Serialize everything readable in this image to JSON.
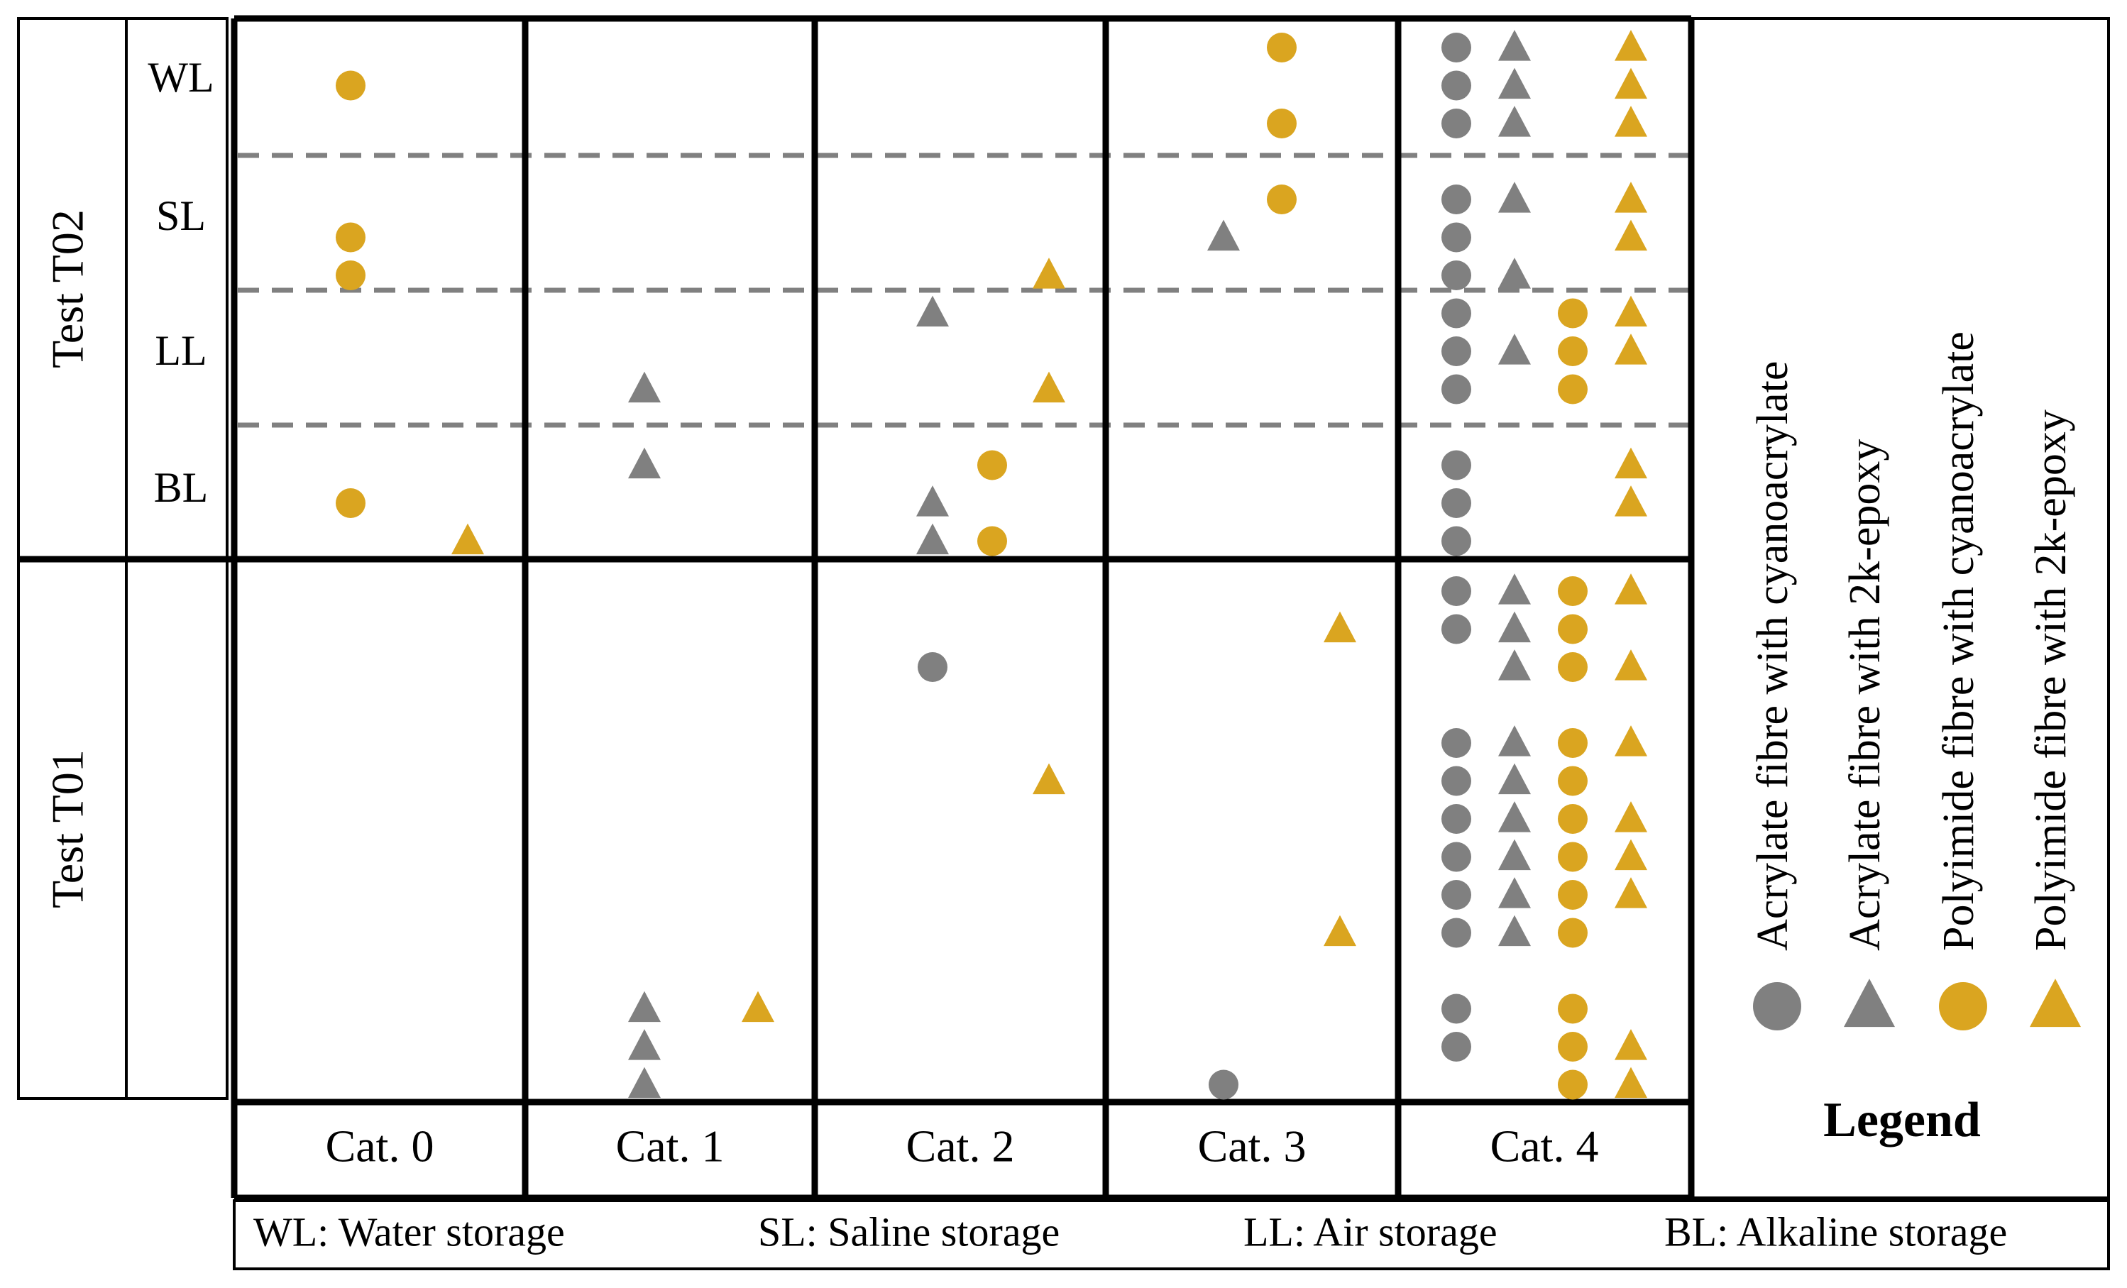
{
  "chart_data": {
    "type": "scatter",
    "legend": {
      "title": "Legend",
      "placement": "right",
      "entries": [
        {
          "id": "acr_cy",
          "label": "Acrylate fibre with cyanoacrylate",
          "shape": "circle",
          "color": "#808080"
        },
        {
          "id": "acr_ep",
          "label": "Acrylate fibre with 2k-epoxy",
          "shape": "triangle",
          "color": "#808080"
        },
        {
          "id": "poly_cy",
          "label": "Polyimide fibre with cyanoacrylate",
          "shape": "circle",
          "color": "#DAA520"
        },
        {
          "id": "poly_ep",
          "label": "Polyimide fibre with 2k-epoxy",
          "shape": "triangle",
          "color": "#DAA520"
        }
      ]
    },
    "categories": [
      "Cat. 0",
      "Cat. 1",
      "Cat. 2",
      "Cat. 3",
      "Cat. 4"
    ],
    "tests": [
      {
        "label": "Test T02",
        "storages": [
          "WL",
          "SL",
          "LL",
          "BL"
        ]
      },
      {
        "label": "Test T01",
        "storages": []
      }
    ],
    "footnote": [
      "WL: Water storage",
      "SL: Saline storage",
      "LL: Air storage",
      "BL: Alkaline storage"
    ],
    "marker_colors": {
      "gray": "#808080",
      "gold": "#DAA520"
    },
    "points": [
      {
        "test": "T02",
        "category": 0,
        "col": 2,
        "row": 1,
        "series": "poly_cy"
      },
      {
        "test": "T02",
        "category": 0,
        "col": 2,
        "row": 5,
        "series": "poly_cy"
      },
      {
        "test": "T02",
        "category": 0,
        "col": 2,
        "row": 6,
        "series": "poly_cy"
      },
      {
        "test": "T02",
        "category": 0,
        "col": 2,
        "row": 12,
        "series": "poly_cy"
      },
      {
        "test": "T02",
        "category": 0,
        "col": 3,
        "row": 13,
        "series": "poly_ep"
      },
      {
        "test": "T02",
        "category": 1,
        "col": 1,
        "row": 9,
        "series": "acr_ep"
      },
      {
        "test": "T02",
        "category": 1,
        "col": 1,
        "row": 11,
        "series": "acr_ep"
      },
      {
        "test": "T02",
        "category": 2,
        "col": 3,
        "row": 6,
        "series": "poly_ep"
      },
      {
        "test": "T02",
        "category": 2,
        "col": 1,
        "row": 7,
        "series": "acr_ep"
      },
      {
        "test": "T02",
        "category": 2,
        "col": 3,
        "row": 9,
        "series": "poly_ep"
      },
      {
        "test": "T02",
        "category": 2,
        "col": 2,
        "row": 11,
        "series": "poly_cy"
      },
      {
        "test": "T02",
        "category": 2,
        "col": 1,
        "row": 12,
        "series": "acr_ep"
      },
      {
        "test": "T02",
        "category": 2,
        "col": 1,
        "row": 13,
        "series": "acr_ep"
      },
      {
        "test": "T02",
        "category": 2,
        "col": 2,
        "row": 13,
        "series": "poly_cy"
      },
      {
        "test": "T02",
        "category": 3,
        "col": 2,
        "row": 0,
        "series": "poly_cy"
      },
      {
        "test": "T02",
        "category": 3,
        "col": 2,
        "row": 2,
        "series": "poly_cy"
      },
      {
        "test": "T02",
        "category": 3,
        "col": 2,
        "row": 4,
        "series": "poly_cy"
      },
      {
        "test": "T02",
        "category": 3,
        "col": 1,
        "row": 5,
        "series": "acr_ep"
      },
      {
        "test": "T02",
        "category": 4,
        "col": 0,
        "row": 0,
        "series": "acr_cy"
      },
      {
        "test": "T02",
        "category": 4,
        "col": 0,
        "row": 1,
        "series": "acr_cy"
      },
      {
        "test": "T02",
        "category": 4,
        "col": 0,
        "row": 2,
        "series": "acr_cy"
      },
      {
        "test": "T02",
        "category": 4,
        "col": 0,
        "row": 4,
        "series": "acr_cy"
      },
      {
        "test": "T02",
        "category": 4,
        "col": 0,
        "row": 5,
        "series": "acr_cy"
      },
      {
        "test": "T02",
        "category": 4,
        "col": 0,
        "row": 6,
        "series": "acr_cy"
      },
      {
        "test": "T02",
        "category": 4,
        "col": 0,
        "row": 7,
        "series": "acr_cy"
      },
      {
        "test": "T02",
        "category": 4,
        "col": 0,
        "row": 8,
        "series": "acr_cy"
      },
      {
        "test": "T02",
        "category": 4,
        "col": 0,
        "row": 9,
        "series": "acr_cy"
      },
      {
        "test": "T02",
        "category": 4,
        "col": 0,
        "row": 11,
        "series": "acr_cy"
      },
      {
        "test": "T02",
        "category": 4,
        "col": 0,
        "row": 12,
        "series": "acr_cy"
      },
      {
        "test": "T02",
        "category": 4,
        "col": 0,
        "row": 13,
        "series": "acr_cy"
      },
      {
        "test": "T02",
        "category": 4,
        "col": 1,
        "row": 0,
        "series": "acr_ep"
      },
      {
        "test": "T02",
        "category": 4,
        "col": 1,
        "row": 1,
        "series": "acr_ep"
      },
      {
        "test": "T02",
        "category": 4,
        "col": 1,
        "row": 2,
        "series": "acr_ep"
      },
      {
        "test": "T02",
        "category": 4,
        "col": 1,
        "row": 4,
        "series": "acr_ep"
      },
      {
        "test": "T02",
        "category": 4,
        "col": 1,
        "row": 6,
        "series": "acr_ep"
      },
      {
        "test": "T02",
        "category": 4,
        "col": 1,
        "row": 8,
        "series": "acr_ep"
      },
      {
        "test": "T02",
        "category": 4,
        "col": 2,
        "row": 7,
        "series": "poly_cy"
      },
      {
        "test": "T02",
        "category": 4,
        "col": 2,
        "row": 8,
        "series": "poly_cy"
      },
      {
        "test": "T02",
        "category": 4,
        "col": 2,
        "row": 9,
        "series": "poly_cy"
      },
      {
        "test": "T02",
        "category": 4,
        "col": 3,
        "row": 0,
        "series": "poly_ep"
      },
      {
        "test": "T02",
        "category": 4,
        "col": 3,
        "row": 1,
        "series": "poly_ep"
      },
      {
        "test": "T02",
        "category": 4,
        "col": 3,
        "row": 2,
        "series": "poly_ep"
      },
      {
        "test": "T02",
        "category": 4,
        "col": 3,
        "row": 4,
        "series": "poly_ep"
      },
      {
        "test": "T02",
        "category": 4,
        "col": 3,
        "row": 5,
        "series": "poly_ep"
      },
      {
        "test": "T02",
        "category": 4,
        "col": 3,
        "row": 7,
        "series": "poly_ep"
      },
      {
        "test": "T02",
        "category": 4,
        "col": 3,
        "row": 8,
        "series": "poly_ep"
      },
      {
        "test": "T02",
        "category": 4,
        "col": 3,
        "row": 11,
        "series": "poly_ep"
      },
      {
        "test": "T02",
        "category": 4,
        "col": 3,
        "row": 12,
        "series": "poly_ep"
      },
      {
        "test": "T01",
        "category": 1,
        "col": 1,
        "row": 11,
        "series": "acr_ep"
      },
      {
        "test": "T01",
        "category": 1,
        "col": 1,
        "row": 12,
        "series": "acr_ep"
      },
      {
        "test": "T01",
        "category": 1,
        "col": 1,
        "row": 13,
        "series": "acr_ep"
      },
      {
        "test": "T01",
        "category": 1,
        "col": 3,
        "row": 11,
        "series": "poly_ep"
      },
      {
        "test": "T01",
        "category": 2,
        "col": 1,
        "row": 2,
        "series": "acr_cy"
      },
      {
        "test": "T01",
        "category": 2,
        "col": 3,
        "row": 5,
        "series": "poly_ep"
      },
      {
        "test": "T01",
        "category": 3,
        "col": 3,
        "row": 1,
        "series": "poly_ep"
      },
      {
        "test": "T01",
        "category": 3,
        "col": 3,
        "row": 9,
        "series": "poly_ep"
      },
      {
        "test": "T01",
        "category": 3,
        "col": 1,
        "row": 13,
        "series": "acr_cy"
      },
      {
        "test": "T01",
        "category": 4,
        "col": 0,
        "row": 0,
        "series": "acr_cy"
      },
      {
        "test": "T01",
        "category": 4,
        "col": 0,
        "row": 1,
        "series": "acr_cy"
      },
      {
        "test": "T01",
        "category": 4,
        "col": 0,
        "row": 4,
        "series": "acr_cy"
      },
      {
        "test": "T01",
        "category": 4,
        "col": 0,
        "row": 5,
        "series": "acr_cy"
      },
      {
        "test": "T01",
        "category": 4,
        "col": 0,
        "row": 6,
        "series": "acr_cy"
      },
      {
        "test": "T01",
        "category": 4,
        "col": 0,
        "row": 7,
        "series": "acr_cy"
      },
      {
        "test": "T01",
        "category": 4,
        "col": 0,
        "row": 8,
        "series": "acr_cy"
      },
      {
        "test": "T01",
        "category": 4,
        "col": 0,
        "row": 9,
        "series": "acr_cy"
      },
      {
        "test": "T01",
        "category": 4,
        "col": 0,
        "row": 11,
        "series": "acr_cy"
      },
      {
        "test": "T01",
        "category": 4,
        "col": 0,
        "row": 12,
        "series": "acr_cy"
      },
      {
        "test": "T01",
        "category": 4,
        "col": 1,
        "row": 0,
        "series": "acr_ep"
      },
      {
        "test": "T01",
        "category": 4,
        "col": 1,
        "row": 1,
        "series": "acr_ep"
      },
      {
        "test": "T01",
        "category": 4,
        "col": 1,
        "row": 2,
        "series": "acr_ep"
      },
      {
        "test": "T01",
        "category": 4,
        "col": 1,
        "row": 4,
        "series": "acr_ep"
      },
      {
        "test": "T01",
        "category": 4,
        "col": 1,
        "row": 5,
        "series": "acr_ep"
      },
      {
        "test": "T01",
        "category": 4,
        "col": 1,
        "row": 6,
        "series": "acr_ep"
      },
      {
        "test": "T01",
        "category": 4,
        "col": 1,
        "row": 7,
        "series": "acr_ep"
      },
      {
        "test": "T01",
        "category": 4,
        "col": 1,
        "row": 8,
        "series": "acr_ep"
      },
      {
        "test": "T01",
        "category": 4,
        "col": 1,
        "row": 9,
        "series": "acr_ep"
      },
      {
        "test": "T01",
        "category": 4,
        "col": 2,
        "row": 0,
        "series": "poly_cy"
      },
      {
        "test": "T01",
        "category": 4,
        "col": 2,
        "row": 1,
        "series": "poly_cy"
      },
      {
        "test": "T01",
        "category": 4,
        "col": 2,
        "row": 2,
        "series": "poly_cy"
      },
      {
        "test": "T01",
        "category": 4,
        "col": 2,
        "row": 4,
        "series": "poly_cy"
      },
      {
        "test": "T01",
        "category": 4,
        "col": 2,
        "row": 5,
        "series": "poly_cy"
      },
      {
        "test": "T01",
        "category": 4,
        "col": 2,
        "row": 6,
        "series": "poly_cy"
      },
      {
        "test": "T01",
        "category": 4,
        "col": 2,
        "row": 7,
        "series": "poly_cy"
      },
      {
        "test": "T01",
        "category": 4,
        "col": 2,
        "row": 8,
        "series": "poly_cy"
      },
      {
        "test": "T01",
        "category": 4,
        "col": 2,
        "row": 9,
        "series": "poly_cy"
      },
      {
        "test": "T01",
        "category": 4,
        "col": 2,
        "row": 11,
        "series": "poly_cy"
      },
      {
        "test": "T01",
        "category": 4,
        "col": 2,
        "row": 12,
        "series": "poly_cy"
      },
      {
        "test": "T01",
        "category": 4,
        "col": 2,
        "row": 13,
        "series": "poly_cy"
      },
      {
        "test": "T01",
        "category": 4,
        "col": 3,
        "row": 0,
        "series": "poly_ep"
      },
      {
        "test": "T01",
        "category": 4,
        "col": 3,
        "row": 2,
        "series": "poly_ep"
      },
      {
        "test": "T01",
        "category": 4,
        "col": 3,
        "row": 4,
        "series": "poly_ep"
      },
      {
        "test": "T01",
        "category": 4,
        "col": 3,
        "row": 6,
        "series": "poly_ep"
      },
      {
        "test": "T01",
        "category": 4,
        "col": 3,
        "row": 7,
        "series": "poly_ep"
      },
      {
        "test": "T01",
        "category": 4,
        "col": 3,
        "row": 8,
        "series": "poly_ep"
      },
      {
        "test": "T01",
        "category": 4,
        "col": 3,
        "row": 12,
        "series": "poly_ep"
      },
      {
        "test": "T01",
        "category": 4,
        "col": 3,
        "row": 13,
        "series": "poly_ep"
      }
    ]
  }
}
